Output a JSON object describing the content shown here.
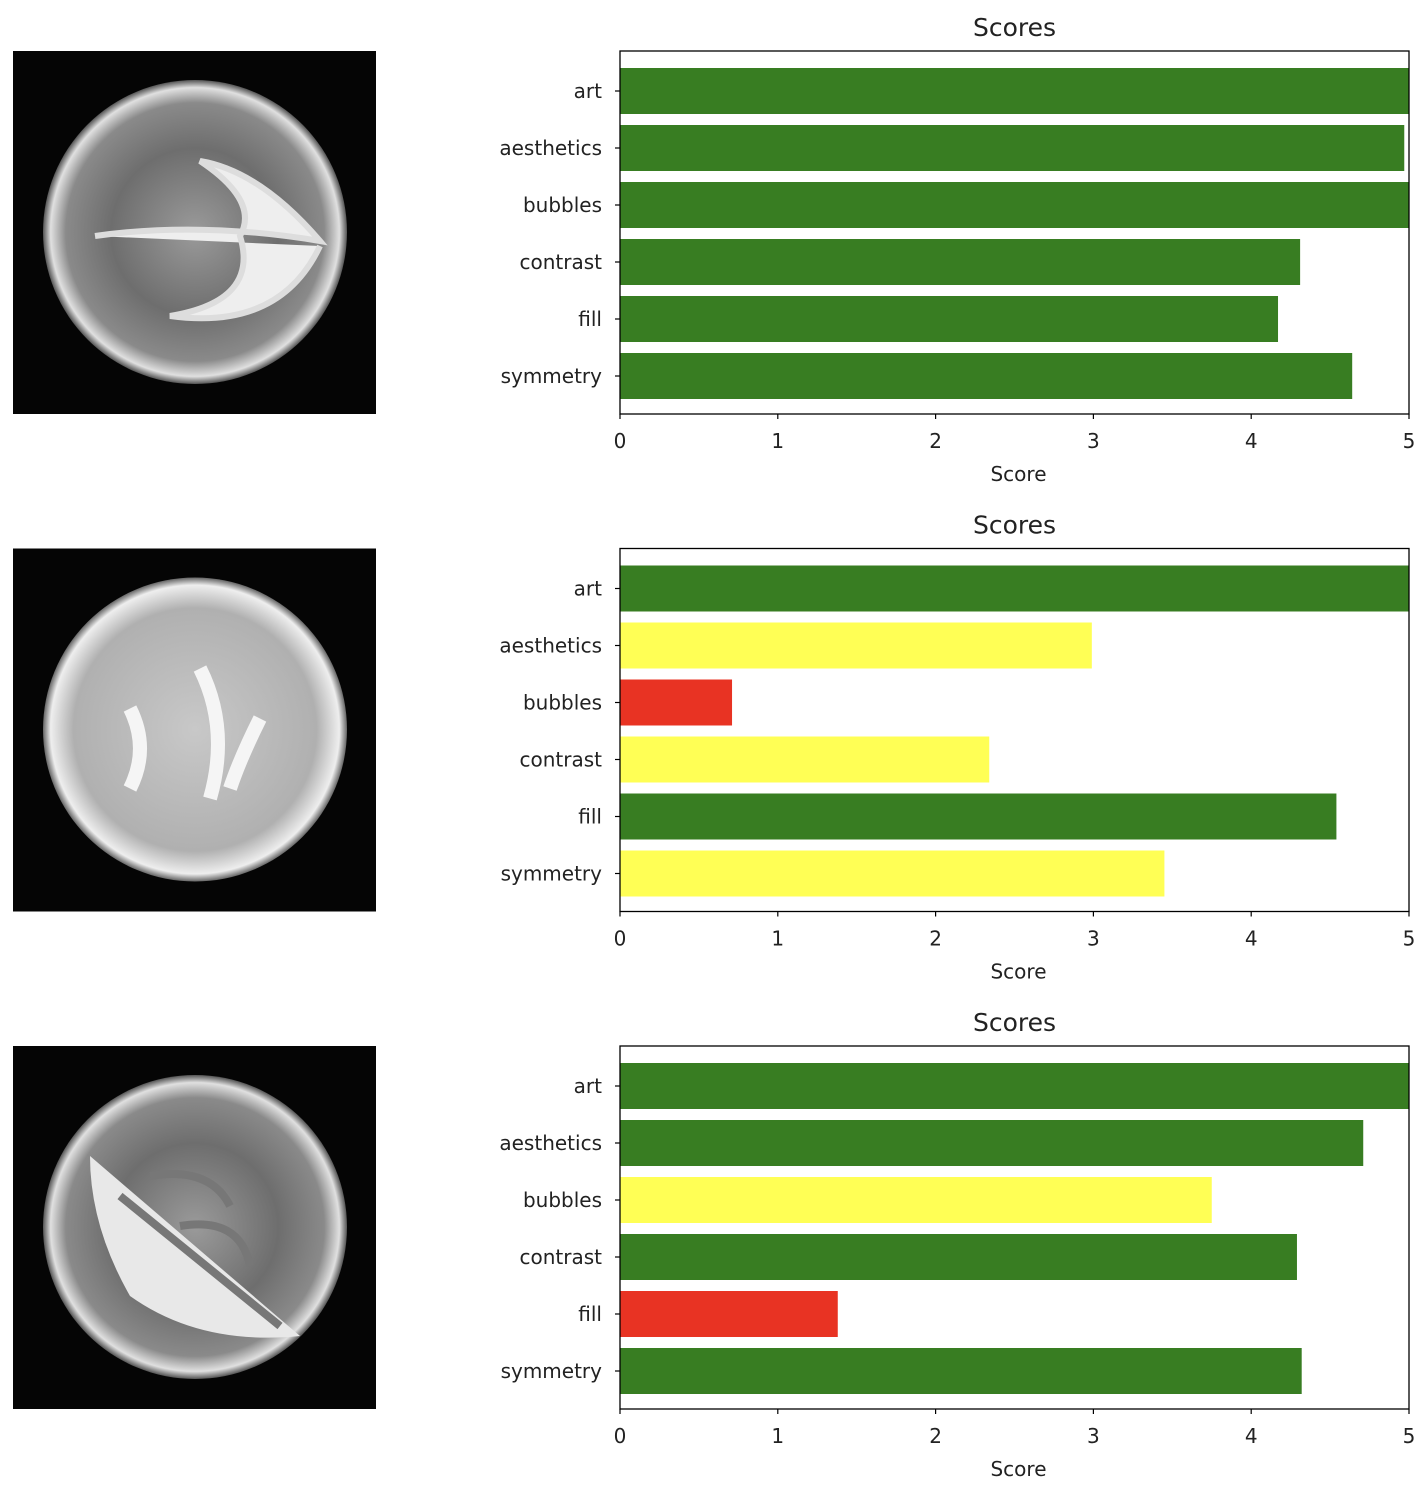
{
  "colors": {
    "good": "#387d22",
    "medium": "#ffff55",
    "poor": "#e83323",
    "image_bg": "#050505"
  },
  "chart_data": [
    {
      "type": "bar",
      "orientation": "horizontal",
      "title": "Scores",
      "xlabel": "Score",
      "xlim": [
        0,
        5
      ],
      "xticks": [
        "0",
        "1",
        "2",
        "3",
        "4",
        "5"
      ],
      "categories": [
        "art",
        "aesthetics",
        "bubbles",
        "contrast",
        "fill",
        "symmetry"
      ],
      "values": [
        5.0,
        4.97,
        5.0,
        4.31,
        4.17,
        4.64
      ],
      "bar_colors": [
        "good",
        "good",
        "good",
        "good",
        "good",
        "good"
      ],
      "image": "latte-art-heart-tulip"
    },
    {
      "type": "bar",
      "orientation": "horizontal",
      "title": "Scores",
      "xlabel": "Score",
      "xlim": [
        0,
        5
      ],
      "xticks": [
        "0",
        "1",
        "2",
        "3",
        "4",
        "5"
      ],
      "categories": [
        "art",
        "aesthetics",
        "bubbles",
        "contrast",
        "fill",
        "symmetry"
      ],
      "values": [
        5.0,
        2.99,
        0.71,
        2.34,
        4.54,
        3.45
      ],
      "bar_colors": [
        "good",
        "medium",
        "poor",
        "medium",
        "good",
        "medium"
      ],
      "image": "latte-art-bubbly"
    },
    {
      "type": "bar",
      "orientation": "horizontal",
      "title": "Scores",
      "xlabel": "Score",
      "xlim": [
        0,
        5
      ],
      "xticks": [
        "0",
        "1",
        "2",
        "3",
        "4",
        "5"
      ],
      "categories": [
        "art",
        "aesthetics",
        "bubbles",
        "contrast",
        "fill",
        "symmetry"
      ],
      "values": [
        5.0,
        4.71,
        3.75,
        4.29,
        1.38,
        4.32
      ],
      "bar_colors": [
        "good",
        "good",
        "medium",
        "good",
        "poor",
        "good"
      ],
      "image": "latte-art-rosetta"
    }
  ]
}
